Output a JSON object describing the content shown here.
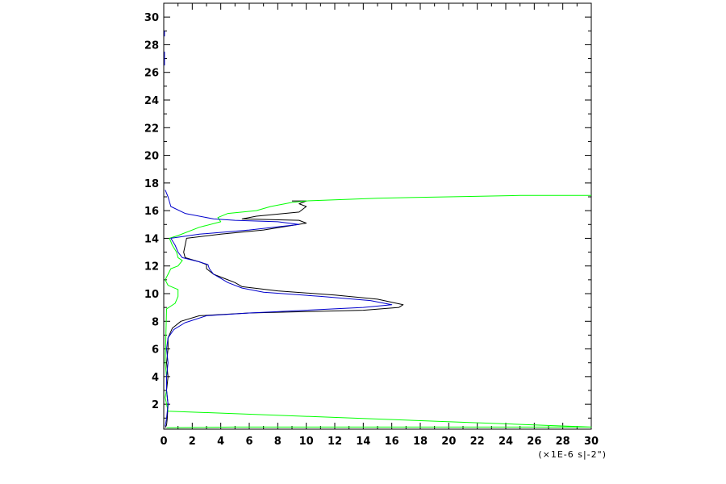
{
  "chart_data": {
    "type": "line",
    "title": "",
    "xlabel": "",
    "ylabel": "",
    "x_unit_label": "(×1E-6  s|-2\")",
    "xlim": [
      0,
      30
    ],
    "ylim": [
      0.2,
      31
    ],
    "x_ticks": [
      0,
      2,
      4,
      6,
      8,
      10,
      12,
      14,
      16,
      18,
      20,
      22,
      24,
      26,
      28,
      30
    ],
    "y_ticks": [
      2,
      4,
      6,
      8,
      10,
      12,
      14,
      16,
      18,
      20,
      22,
      24,
      26,
      28,
      30
    ],
    "x_tick_labels": [
      "0",
      "2",
      "4",
      "6",
      "8",
      "10",
      "12",
      "14",
      "16",
      "18",
      "20",
      "22",
      "24",
      "26",
      "28",
      "30"
    ],
    "y_tick_labels": [
      "2",
      "4",
      "6",
      "8",
      "10",
      "12",
      "14",
      "16",
      "18",
      "20",
      "22",
      "24",
      "26",
      "28",
      "30"
    ],
    "grid": false,
    "series": [
      {
        "color": "#000000",
        "points": [
          [
            0.1,
            0.3
          ],
          [
            0.2,
            0.5
          ],
          [
            0.25,
            1.0
          ],
          [
            0.3,
            2.0
          ],
          [
            0.2,
            3.0
          ],
          [
            0.3,
            4.0
          ],
          [
            0.2,
            5.0
          ],
          [
            0.3,
            6.0
          ],
          [
            0.3,
            6.8
          ],
          [
            0.6,
            7.5
          ],
          [
            1.2,
            8.0
          ],
          [
            2.5,
            8.4
          ],
          [
            6,
            8.6
          ],
          [
            10,
            8.7
          ],
          [
            14,
            8.8
          ],
          [
            16.5,
            9.0
          ],
          [
            16.8,
            9.2
          ],
          [
            15,
            9.6
          ],
          [
            12,
            9.9
          ],
          [
            8,
            10.2
          ],
          [
            5.5,
            10.5
          ],
          [
            5,
            10.8
          ],
          [
            4.5,
            11.0
          ],
          [
            3.5,
            11.4
          ],
          [
            3.0,
            11.8
          ],
          [
            3.0,
            12.1
          ],
          [
            2.5,
            12.3
          ],
          [
            1.5,
            12.6
          ],
          [
            1.4,
            13.0
          ],
          [
            1.5,
            13.5
          ],
          [
            1.6,
            14.0
          ],
          [
            4,
            14.3
          ],
          [
            7,
            14.6
          ],
          [
            10,
            15.1
          ],
          [
            9.5,
            15.3
          ],
          [
            5.5,
            15.4
          ],
          [
            6.5,
            15.6
          ],
          [
            9.5,
            15.9
          ],
          [
            10,
            16.3
          ],
          [
            9.5,
            16.5
          ],
          [
            10,
            16.7
          ],
          [
            9,
            16.7
          ]
        ]
      },
      {
        "color": "#00ff00",
        "points": [
          [
            0.2,
            0.3
          ],
          [
            5,
            0.35
          ],
          [
            15,
            0.35
          ],
          [
            25,
            0.35
          ],
          [
            30,
            0.35
          ],
          [
            0.3,
            1.5
          ],
          [
            0.1,
            2.5
          ],
          [
            0.2,
            3.0
          ],
          [
            0.2,
            4.0
          ],
          [
            0.1,
            5.0
          ],
          [
            0.2,
            8.9
          ],
          [
            0.8,
            9.3
          ],
          [
            1.0,
            9.8
          ],
          [
            1.0,
            10.3
          ],
          [
            0.3,
            10.6
          ],
          [
            0.1,
            11.0
          ],
          [
            0.5,
            11.8
          ],
          [
            1.0,
            12.0
          ],
          [
            1.3,
            12.4
          ],
          [
            1.0,
            12.6
          ],
          [
            0.9,
            13.0
          ],
          [
            0.6,
            13.5
          ],
          [
            0.4,
            14.0
          ],
          [
            1.0,
            14.2
          ],
          [
            2.5,
            14.8
          ],
          [
            4,
            15.2
          ],
          [
            3.8,
            15.5
          ],
          [
            4.5,
            15.8
          ],
          [
            6.5,
            16.0
          ],
          [
            7.5,
            16.3
          ],
          [
            8.5,
            16.5
          ],
          [
            9,
            16.6
          ],
          [
            10,
            16.7
          ],
          [
            15,
            16.9
          ],
          [
            20,
            17.0
          ],
          [
            25,
            17.1
          ],
          [
            30,
            17.1
          ]
        ]
      },
      {
        "color": "#0000cc",
        "points": [
          [
            0.1,
            0.4
          ],
          [
            0.2,
            1.0
          ],
          [
            0.3,
            2.0
          ],
          [
            0.2,
            3.0
          ],
          [
            0.2,
            4.0
          ],
          [
            0.3,
            5.0
          ],
          [
            0.2,
            6.0
          ],
          [
            0.3,
            6.8
          ],
          [
            0.7,
            7.4
          ],
          [
            1.5,
            7.9
          ],
          [
            3,
            8.4
          ],
          [
            6,
            8.6
          ],
          [
            10,
            8.8
          ],
          [
            14,
            9.0
          ],
          [
            16,
            9.2
          ],
          [
            14.5,
            9.5
          ],
          [
            11,
            9.8
          ],
          [
            7,
            10.1
          ],
          [
            5.5,
            10.4
          ],
          [
            4.5,
            10.8
          ],
          [
            4,
            11.1
          ],
          [
            3.5,
            11.4
          ],
          [
            3.2,
            11.8
          ],
          [
            3.1,
            12.1
          ],
          [
            2.5,
            12.3
          ],
          [
            1.3,
            12.6
          ],
          [
            1.0,
            13.0
          ],
          [
            0.8,
            13.5
          ],
          [
            0.5,
            14.0
          ],
          [
            2.5,
            14.3
          ],
          [
            6,
            14.6
          ],
          [
            9.5,
            15.0
          ],
          [
            8,
            15.2
          ],
          [
            5,
            15.3
          ],
          [
            3.5,
            15.4
          ],
          [
            1.5,
            15.8
          ],
          [
            0.5,
            16.3
          ],
          [
            0.3,
            17.0
          ],
          [
            0.1,
            17.5
          ]
        ]
      },
      {
        "color": "#0000cc",
        "points": [
          [
            0.05,
            26.5
          ],
          [
            0.05,
            27.5
          ]
        ]
      },
      {
        "color": "#0000cc",
        "points": [
          [
            0.05,
            28.6
          ],
          [
            0.05,
            29.0
          ]
        ]
      }
    ]
  }
}
